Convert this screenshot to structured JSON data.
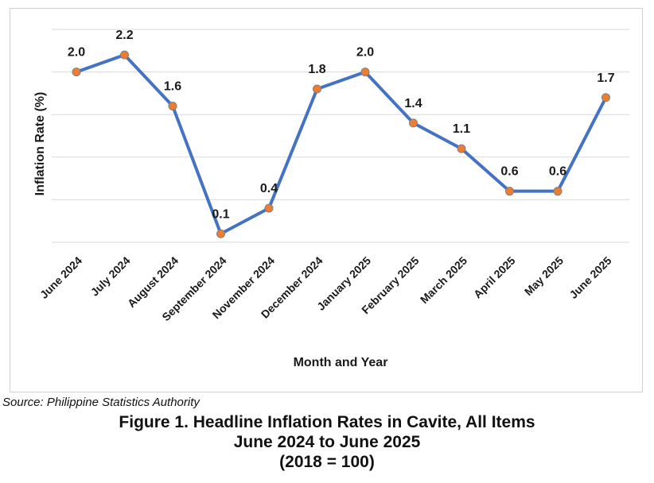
{
  "chart_data": {
    "type": "line",
    "categories": [
      "June 2024",
      "July 2024",
      "August 2024",
      "September 2024",
      "November 2024",
      "December 2024",
      "January 2025",
      "February 2025",
      "March 2025",
      "April 2025",
      "May 2025",
      "June 2025"
    ],
    "series": [
      {
        "values": [
          2.0,
          2.2,
          1.6,
          0.1,
          0.4,
          1.8,
          2.0,
          1.4,
          1.1,
          0.6,
          0.6,
          1.7
        ]
      }
    ],
    "data_labels": [
      "2.0",
      "2.2",
      "1.6",
      "0.1",
      "0.4",
      "1.8",
      "2.0",
      "1.4",
      "1.1",
      "0.6",
      "0.6",
      "1.7"
    ],
    "xlabel": "Month and Year",
    "ylabel": "Inflation Rate (%)",
    "ylim": [
      0,
      2.5
    ],
    "grid": true,
    "line_color": "#4472c4",
    "marker_color": "#ed7d31"
  },
  "source": "Source: Philippine Statistics Authority",
  "caption": {
    "line1": "Figure 1. Headline Inflation Rates in Cavite, All Items",
    "line2": "June 2024 to June 2025",
    "line3": "(2018 = 100)"
  }
}
